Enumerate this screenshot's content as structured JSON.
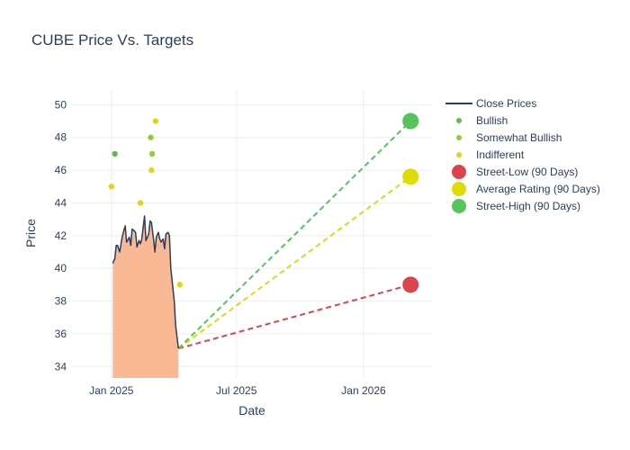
{
  "chart_data": {
    "type": "line",
    "title": "CUBE Price Vs. Targets",
    "xlabel": "Date",
    "ylabel": "Price",
    "xlim": [
      "2024-11-05",
      "2026-04-10"
    ],
    "ylim": [
      33.3,
      50.9
    ],
    "grid": true,
    "legend_position": "right",
    "x_ticks": [
      {
        "date": "2025-01-01",
        "label": "Jan 2025"
      },
      {
        "date": "2025-07-01",
        "label": "Jul 2025"
      },
      {
        "date": "2026-01-01",
        "label": "Jan 2026"
      }
    ],
    "y_ticks": [
      34,
      36,
      38,
      40,
      42,
      44,
      46,
      48,
      50
    ],
    "series": [
      {
        "name": "Close Prices",
        "kind": "line",
        "color": "#2a3f5f",
        "fill_color": "#f9b994",
        "x": [
          "2025-01-03",
          "2025-01-06",
          "2025-01-08",
          "2025-01-10",
          "2025-01-13",
          "2025-01-15",
          "2025-01-17",
          "2025-01-21",
          "2025-01-23",
          "2025-01-27",
          "2025-01-29",
          "2025-01-31",
          "2025-02-03",
          "2025-02-05",
          "2025-02-07",
          "2025-02-10",
          "2025-02-12",
          "2025-02-14",
          "2025-02-18",
          "2025-02-20",
          "2025-02-24",
          "2025-02-26",
          "2025-02-28",
          "2025-03-03",
          "2025-03-05",
          "2025-03-07",
          "2025-03-10",
          "2025-03-12",
          "2025-03-14",
          "2025-03-17",
          "2025-03-19",
          "2025-03-21",
          "2025-03-24",
          "2025-03-26",
          "2025-03-28",
          "2025-03-31",
          "2025-04-02",
          "2025-04-04",
          "2025-04-08"
        ],
        "y": [
          40.3,
          40.6,
          41.4,
          41.4,
          41.0,
          41.5,
          42.0,
          42.6,
          41.6,
          41.9,
          41.4,
          42.4,
          42.3,
          42.2,
          41.3,
          41.7,
          41.5,
          41.8,
          43.2,
          41.7,
          42.1,
          42.9,
          42.8,
          41.8,
          41.0,
          41.9,
          42.2,
          41.8,
          41.6,
          41.8,
          41.2,
          42.1,
          42.2,
          42.0,
          40.0,
          38.8,
          38.0,
          36.5,
          35.1
        ]
      },
      {
        "name": "Bullish",
        "kind": "markers",
        "color": "#5cbd47",
        "points": [
          {
            "x": "2025-01-06",
            "y": 47
          }
        ]
      },
      {
        "name": "Somewhat Bullish",
        "kind": "markers",
        "color": "#95cc2e",
        "points": [
          {
            "x": "2025-02-27",
            "y": 48
          },
          {
            "x": "2025-03-01",
            "y": 47
          }
        ]
      },
      {
        "name": "Indifferent",
        "kind": "markers",
        "color": "#e3d60b",
        "points": [
          {
            "x": "2025-01-01",
            "y": 45
          },
          {
            "x": "2025-02-12",
            "y": 44
          },
          {
            "x": "2025-02-28",
            "y": 46
          },
          {
            "x": "2025-03-06",
            "y": 49
          },
          {
            "x": "2025-04-10",
            "y": 39
          }
        ]
      },
      {
        "name": "Street-Low (90 Days)",
        "kind": "target",
        "color": "#d9444d",
        "from": {
          "x": "2025-04-08",
          "y": 35.1
        },
        "to": {
          "x": "2026-03-10",
          "y": 39
        }
      },
      {
        "name": "Average Rating (90 Days)",
        "kind": "target",
        "color": "#dedc07",
        "from": {
          "x": "2025-04-08",
          "y": 35.1
        },
        "to": {
          "x": "2026-03-10",
          "y": 45.6
        }
      },
      {
        "name": "Street-High (90 Days)",
        "kind": "target",
        "color": "#55c45a",
        "from": {
          "x": "2025-04-08",
          "y": 35.1
        },
        "to": {
          "x": "2026-03-10",
          "y": 49
        }
      }
    ]
  }
}
